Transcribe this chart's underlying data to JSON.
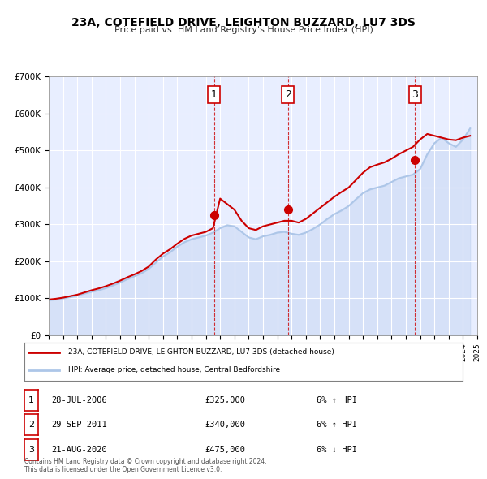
{
  "title": "23A, COTEFIELD DRIVE, LEIGHTON BUZZARD, LU7 3DS",
  "subtitle": "Price paid vs. HM Land Registry's House Price Index (HPI)",
  "bg_color": "#f0f4ff",
  "plot_bg_color": "#e8eeff",
  "grid_color": "#ffffff",
  "xlabel": "",
  "ylabel": "",
  "ylim": [
    0,
    700000
  ],
  "yticks": [
    0,
    100000,
    200000,
    300000,
    400000,
    500000,
    600000,
    700000
  ],
  "ytick_labels": [
    "£0",
    "£100K",
    "£200K",
    "£300K",
    "£400K",
    "£500K",
    "£600K",
    "£700K"
  ],
  "hpi_color": "#adc6e8",
  "price_color": "#cc0000",
  "marker_color": "#cc0000",
  "sale_points": [
    {
      "year": 2006.57,
      "price": 325000,
      "label": "1"
    },
    {
      "year": 2011.75,
      "price": 340000,
      "label": "2"
    },
    {
      "year": 2020.64,
      "price": 475000,
      "label": "3"
    }
  ],
  "vline_years": [
    2006.57,
    2011.75,
    2020.64
  ],
  "vline_color": "#cc0000",
  "legend_entries": [
    "23A, COTEFIELD DRIVE, LEIGHTON BUZZARD, LU7 3DS (detached house)",
    "HPI: Average price, detached house, Central Bedfordshire"
  ],
  "table_rows": [
    {
      "num": "1",
      "date": "28-JUL-2006",
      "price": "£325,000",
      "change": "6% ↑ HPI"
    },
    {
      "num": "2",
      "date": "29-SEP-2011",
      "price": "£340,000",
      "change": "6% ↑ HPI"
    },
    {
      "num": "3",
      "date": "21-AUG-2020",
      "price": "£475,000",
      "change": "6% ↓ HPI"
    }
  ],
  "footnote": "Contains HM Land Registry data © Crown copyright and database right 2024.\nThis data is licensed under the Open Government Licence v3.0.",
  "hpi_data": {
    "years": [
      1995,
      1995.5,
      1996,
      1996.5,
      1997,
      1997.5,
      1998,
      1998.5,
      1999,
      1999.5,
      2000,
      2000.5,
      2001,
      2001.5,
      2002,
      2002.5,
      2003,
      2003.5,
      2004,
      2004.5,
      2005,
      2005.5,
      2006,
      2006.5,
      2007,
      2007.5,
      2008,
      2008.5,
      2009,
      2009.5,
      2010,
      2010.5,
      2011,
      2011.5,
      2012,
      2012.5,
      2013,
      2013.5,
      2014,
      2014.5,
      2015,
      2015.5,
      2016,
      2016.5,
      2017,
      2017.5,
      2018,
      2018.5,
      2019,
      2019.5,
      2020,
      2020.5,
      2021,
      2021.5,
      2022,
      2022.5,
      2023,
      2023.5,
      2024,
      2024.5
    ],
    "values": [
      95000,
      97000,
      100000,
      103000,
      108000,
      113000,
      118000,
      122000,
      128000,
      135000,
      143000,
      152000,
      160000,
      168000,
      180000,
      197000,
      213000,
      225000,
      240000,
      252000,
      260000,
      265000,
      270000,
      278000,
      290000,
      298000,
      295000,
      280000,
      265000,
      260000,
      268000,
      272000,
      278000,
      280000,
      275000,
      272000,
      278000,
      288000,
      300000,
      315000,
      328000,
      338000,
      350000,
      368000,
      385000,
      395000,
      400000,
      405000,
      415000,
      425000,
      430000,
      435000,
      450000,
      490000,
      520000,
      535000,
      520000,
      510000,
      530000,
      560000
    ]
  },
  "price_data": {
    "years": [
      1995,
      1995.5,
      1996,
      1996.5,
      1997,
      1997.5,
      1998,
      1998.5,
      1999,
      1999.5,
      2000,
      2000.5,
      2001,
      2001.5,
      2002,
      2002.5,
      2003,
      2003.5,
      2004,
      2004.5,
      2005,
      2005.5,
      2006,
      2006.5,
      2007,
      2007.5,
      2008,
      2008.5,
      2009,
      2009.5,
      2010,
      2010.5,
      2011,
      2011.5,
      2012,
      2012.5,
      2013,
      2013.5,
      2014,
      2014.5,
      2015,
      2015.5,
      2016,
      2016.5,
      2017,
      2017.5,
      2018,
      2018.5,
      2019,
      2019.5,
      2020,
      2020.5,
      2021,
      2021.5,
      2022,
      2022.5,
      2023,
      2023.5,
      2024,
      2024.5
    ],
    "values": [
      97000,
      99000,
      102000,
      106000,
      110000,
      116000,
      122000,
      127000,
      133000,
      140000,
      148000,
      157000,
      165000,
      174000,
      186000,
      205000,
      221000,
      233000,
      248000,
      261000,
      270000,
      275000,
      280000,
      290000,
      370000,
      355000,
      340000,
      310000,
      290000,
      285000,
      295000,
      300000,
      305000,
      310000,
      310000,
      305000,
      315000,
      330000,
      345000,
      360000,
      375000,
      388000,
      400000,
      420000,
      440000,
      455000,
      462000,
      468000,
      478000,
      490000,
      500000,
      510000,
      530000,
      545000,
      540000,
      535000,
      530000,
      528000,
      535000,
      540000
    ]
  }
}
